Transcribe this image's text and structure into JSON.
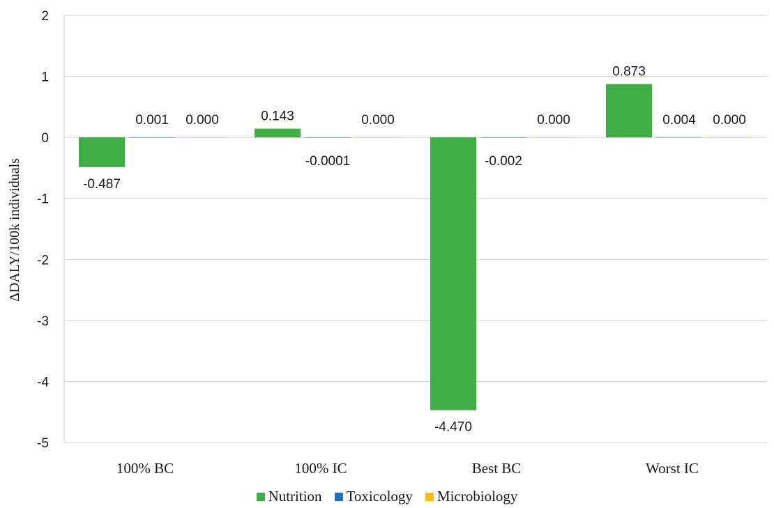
{
  "chart_data": {
    "type": "bar",
    "title": "",
    "xlabel": "",
    "ylabel": "ΔDALY/100k individuals",
    "ylim": [
      -5,
      2
    ],
    "yticks": [
      2,
      1,
      0,
      -1,
      -2,
      -3,
      -4,
      -5
    ],
    "grid": true,
    "legend_position": "bottom",
    "categories": [
      "100% BC",
      "100% IC",
      "Best BC",
      "Worst IC"
    ],
    "series": [
      {
        "name": "Nutrition",
        "color": "#3fae45",
        "values": [
          -0.487,
          0.143,
          -4.47,
          0.873
        ],
        "labels": [
          "-0.487",
          "0.143",
          "-4.470",
          "0.873"
        ]
      },
      {
        "name": "Toxicology",
        "color": "#1f6fc5",
        "values": [
          0.001,
          -0.0001,
          -0.002,
          0.004
        ],
        "labels": [
          "0.001",
          "-0.0001",
          "-0.002",
          "0.004"
        ]
      },
      {
        "name": "Microbiology",
        "color": "#ffc000",
        "values": [
          0.0,
          0.0,
          0.0,
          0.0
        ],
        "labels": [
          "0.000",
          "0.000",
          "0.000",
          "0.000"
        ]
      }
    ]
  }
}
